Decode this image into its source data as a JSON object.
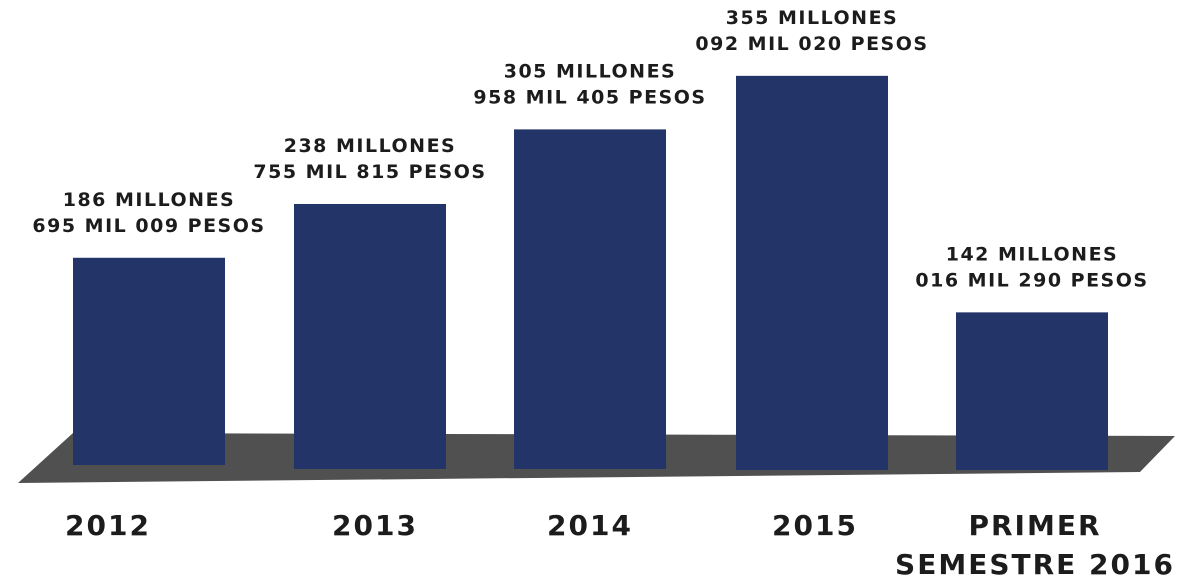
{
  "chart_data": {
    "type": "bar",
    "categories": [
      "2012",
      "2013",
      "2014",
      "2015",
      "PRIMER SEMESTRE 2016"
    ],
    "category_lines": [
      [
        "2012"
      ],
      [
        "2013"
      ],
      [
        "2014"
      ],
      [
        "2015"
      ],
      [
        "PRIMER",
        "SEMESTRE 2016"
      ]
    ],
    "values": [
      186695009,
      238755815,
      305958405,
      355092020,
      142016290
    ],
    "value_labels": [
      [
        "186 MILLONES",
        "695 MIL 009 PESOS"
      ],
      [
        "238 MILLONES",
        "755 MIL 815 PESOS"
      ],
      [
        "305 MILLONES",
        "958 MIL 405 PESOS"
      ],
      [
        "355 MILLONES",
        "092 MIL 020 PESOS"
      ],
      [
        "142 MILLONES",
        "016 MIL 290 PESOS"
      ]
    ],
    "colors": {
      "bar": "#223468",
      "floor": "#505050",
      "text": "#1c1c1c"
    },
    "title": "",
    "xlabel": "",
    "ylabel": "",
    "grid": false,
    "legend": "none"
  }
}
